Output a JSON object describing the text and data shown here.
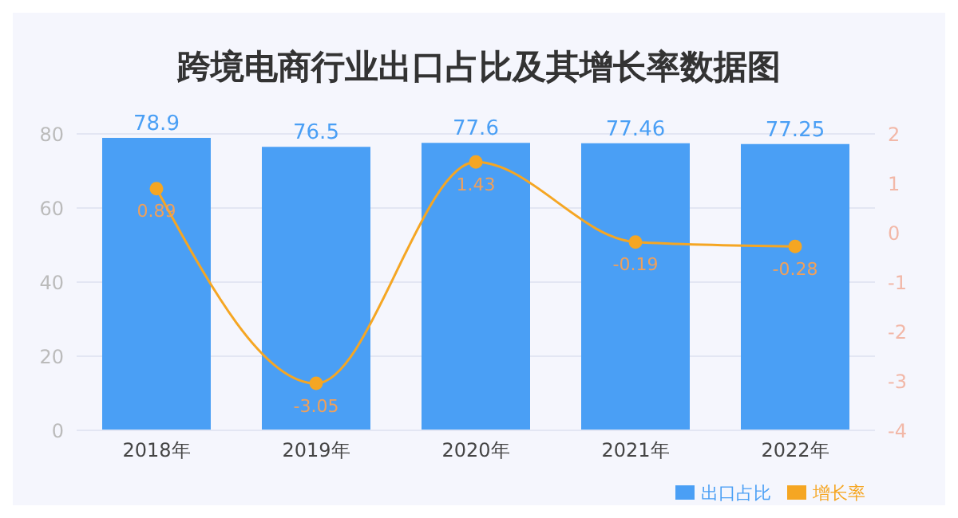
{
  "chart_data": {
    "type": "bar",
    "title": "跨境电商行业出口占比及其增长率数据图",
    "categories": [
      "2018年",
      "2019年",
      "2020年",
      "2021年",
      "2022年"
    ],
    "series": [
      {
        "name": "出口占比",
        "color": "#4a9ff5",
        "values": [
          78.9,
          76.5,
          77.6,
          77.46,
          77.25
        ]
      },
      {
        "name": "增长率",
        "type": "line",
        "axis": "y2",
        "color": "#f5a623",
        "values": [
          0.89,
          -3.05,
          1.43,
          -0.19,
          -0.28
        ]
      }
    ],
    "ylim": [
      0,
      80
    ],
    "yticks": [
      0,
      20,
      40,
      60,
      80
    ],
    "y2lim": [
      -4,
      2
    ],
    "y2ticks": [
      -4,
      -3,
      -2,
      -1,
      0,
      1,
      2
    ],
    "data_labels": true,
    "grid": "y",
    "legend": "bottom right",
    "marker": "circle"
  }
}
